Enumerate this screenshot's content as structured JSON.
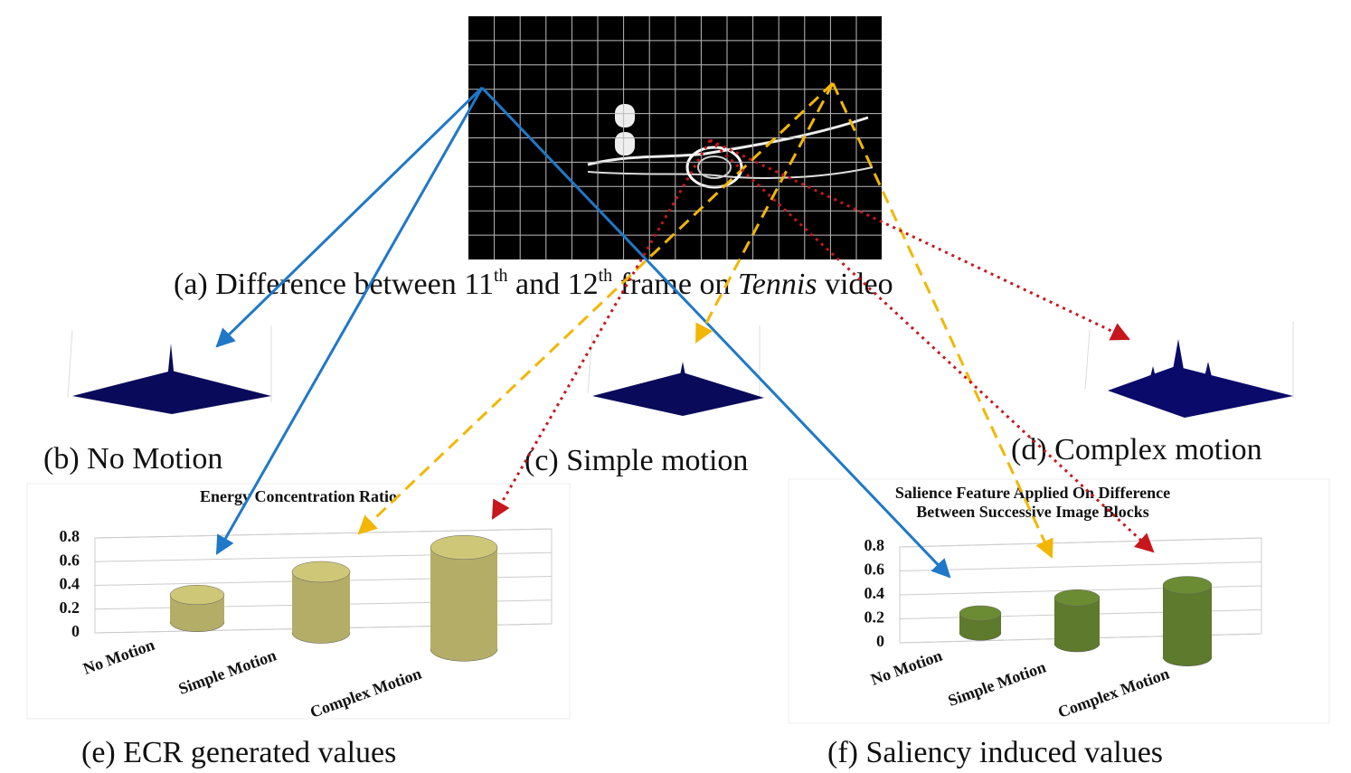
{
  "captions": {
    "a": [
      "(a) Difference between 11",
      "th",
      " and 12",
      "th",
      " frame on ",
      "Tennis",
      " video"
    ],
    "b": "(b) No Motion",
    "c": "(c) Simple motion",
    "d": "(d) Complex motion",
    "e": "(e) ECR generated values",
    "f": "(f) Saliency induced values"
  },
  "chart_data": [
    {
      "type": "bar",
      "title": [
        "Energy Concentration Ratio"
      ],
      "categories": [
        "No Motion",
        "Simple Motion",
        "Complex Motion"
      ],
      "values": [
        0.2,
        0.45,
        0.75
      ],
      "color": "#b3ad68",
      "ylim": [
        0,
        0.8
      ],
      "yticks": [
        0,
        0.2,
        0.4,
        0.6,
        0.8
      ],
      "grid": true
    },
    {
      "type": "bar",
      "title": [
        "Salience Feature Applied On Difference",
        "Between Successive Image Blocks"
      ],
      "categories": [
        "No Motion",
        "Simple Motion",
        "Complex Motion"
      ],
      "values": [
        0.15,
        0.35,
        0.55
      ],
      "color": "#5e7a2c",
      "ylim": [
        0,
        0.8
      ],
      "yticks": [
        0,
        0.2,
        0.4,
        0.6,
        0.8
      ],
      "grid": true
    }
  ]
}
